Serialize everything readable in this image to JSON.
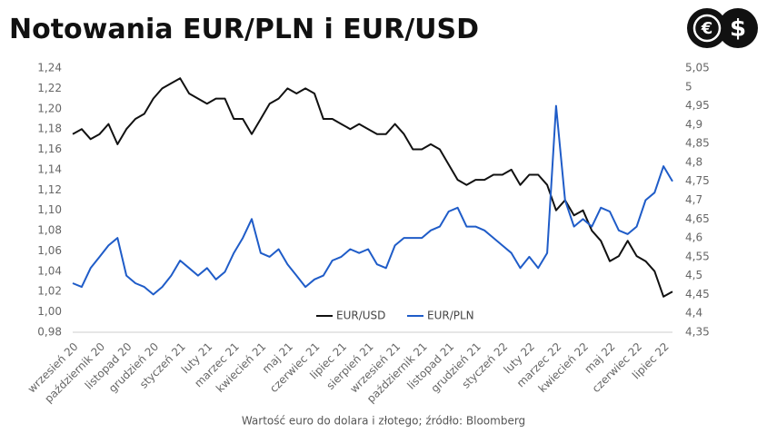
{
  "logo": [
    "€",
    "$"
  ],
  "chart_data": {
    "type": "line",
    "title": "Notowania EUR/PLN i EUR/USD",
    "caption": "Wartość euro do dolara i złotego; źródło: Bloomberg",
    "categories": [
      "wrzesień 20",
      null,
      null,
      "październik 20",
      null,
      null,
      "listopad 20",
      null,
      null,
      "grudzień 20",
      null,
      null,
      "styczeń 21",
      null,
      null,
      "luty 21",
      null,
      null,
      "marzec 21",
      null,
      null,
      "kwiecień 21",
      null,
      null,
      "maj 21",
      null,
      null,
      "czerwiec 21",
      null,
      null,
      "lipiec 21",
      null,
      null,
      "sierpień 21",
      null,
      null,
      "wrzesień 21",
      null,
      null,
      "październik 21",
      null,
      null,
      "listopad 21",
      null,
      null,
      "grudzień 21",
      null,
      null,
      "styczeń 22",
      null,
      null,
      "luty 22",
      null,
      null,
      "marzec 22",
      null,
      null,
      "kwiecień 22",
      null,
      null,
      "maj 22",
      null,
      null,
      "czerwiec 22",
      null,
      null,
      "lipiec 22",
      null
    ],
    "series": [
      {
        "name": "EUR/USD",
        "color": "#111111",
        "axis": "y",
        "values": [
          1.175,
          1.18,
          1.17,
          1.175,
          1.185,
          1.165,
          1.18,
          1.19,
          1.195,
          1.21,
          1.22,
          1.225,
          1.23,
          1.215,
          1.21,
          1.205,
          1.21,
          1.21,
          1.19,
          1.19,
          1.175,
          1.19,
          1.205,
          1.21,
          1.22,
          1.215,
          1.22,
          1.215,
          1.19,
          1.19,
          1.185,
          1.18,
          1.185,
          1.18,
          1.175,
          1.175,
          1.185,
          1.175,
          1.16,
          1.16,
          1.165,
          1.16,
          1.145,
          1.13,
          1.125,
          1.13,
          1.13,
          1.135,
          1.135,
          1.14,
          1.125,
          1.135,
          1.135,
          1.125,
          1.1,
          1.11,
          1.095,
          1.1,
          1.08,
          1.07,
          1.05,
          1.055,
          1.07,
          1.055,
          1.05,
          1.04,
          1.015,
          1.02
        ]
      },
      {
        "name": "EUR/PLN",
        "color": "#1f5cc8",
        "axis": "y2",
        "values": [
          4.48,
          4.47,
          4.52,
          4.55,
          4.58,
          4.6,
          4.5,
          4.48,
          4.47,
          4.45,
          4.47,
          4.5,
          4.54,
          4.52,
          4.5,
          4.52,
          4.49,
          4.51,
          4.56,
          4.6,
          4.65,
          4.56,
          4.55,
          4.57,
          4.53,
          4.5,
          4.47,
          4.49,
          4.5,
          4.54,
          4.55,
          4.57,
          4.56,
          4.57,
          4.53,
          4.52,
          4.58,
          4.6,
          4.6,
          4.6,
          4.62,
          4.63,
          4.67,
          4.68,
          4.63,
          4.63,
          4.62,
          4.6,
          4.58,
          4.56,
          4.52,
          4.55,
          4.52,
          4.56,
          4.95,
          4.7,
          4.63,
          4.65,
          4.63,
          4.68,
          4.67,
          4.62,
          4.61,
          4.63,
          4.7,
          4.72,
          4.79,
          4.75
        ]
      }
    ],
    "ylim": [
      0.98,
      1.24
    ],
    "yticks": [
      {
        "value": 0.98,
        "label": "0,98"
      },
      {
        "value": 1.0,
        "label": "1,00"
      },
      {
        "value": 1.02,
        "label": "1,02"
      },
      {
        "value": 1.04,
        "label": "1,04"
      },
      {
        "value": 1.06,
        "label": "1,06"
      },
      {
        "value": 1.08,
        "label": "1,08"
      },
      {
        "value": 1.1,
        "label": "1,10"
      },
      {
        "value": 1.12,
        "label": "1,12"
      },
      {
        "value": 1.14,
        "label": "1,14"
      },
      {
        "value": 1.16,
        "label": "1,16"
      },
      {
        "value": 1.18,
        "label": "1,18"
      },
      {
        "value": 1.2,
        "label": "1,20"
      },
      {
        "value": 1.22,
        "label": "1,22"
      },
      {
        "value": 1.24,
        "label": "1,24"
      }
    ],
    "y2lim": [
      4.35,
      5.05
    ],
    "y2ticks": [
      {
        "value": 4.35,
        "label": "4,35"
      },
      {
        "value": 4.4,
        "label": "4,4"
      },
      {
        "value": 4.45,
        "label": "4,45"
      },
      {
        "value": 4.5,
        "label": "4,5"
      },
      {
        "value": 4.55,
        "label": "4,55"
      },
      {
        "value": 4.6,
        "label": "4,6"
      },
      {
        "value": 4.65,
        "label": "4,65"
      },
      {
        "value": 4.7,
        "label": "4,7"
      },
      {
        "value": 4.75,
        "label": "4,75"
      },
      {
        "value": 4.8,
        "label": "4,8"
      },
      {
        "value": 4.85,
        "label": "4,85"
      },
      {
        "value": 4.9,
        "label": "4,9"
      },
      {
        "value": 4.95,
        "label": "4,95"
      },
      5,
      {
        "value": 5.05,
        "label": "5,05"
      }
    ],
    "grid": false,
    "legend": "bottom"
  }
}
